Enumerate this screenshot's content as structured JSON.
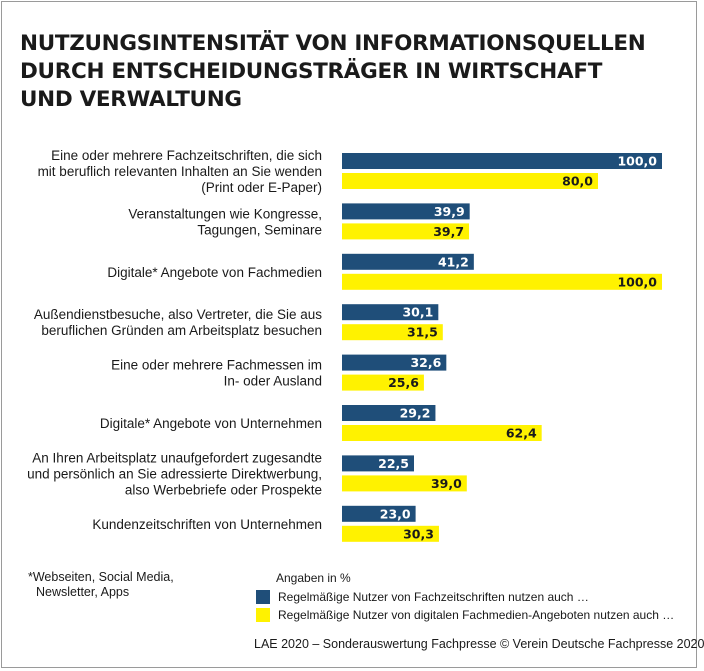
{
  "title_lines": [
    "NUTZUNGSINTENSITÄT VON INFORMATIONSQUELLEN",
    "DURCH ENTSCHEIDUNGSTRÄGER IN WIRTSCHAFT",
    "UND VERWALTUNG"
  ],
  "footnote_lines": [
    "*Webseiten, Social Media,",
    "Newsletter, Apps"
  ],
  "legend": {
    "unit": "Angaben in %",
    "items": [
      "Regelmäßige Nutzer von Fachzeitschriften nutzen auch …",
      "Regelmäßige Nutzer von digitalen Fachmedien-Angeboten nutzen auch …"
    ]
  },
  "source": "LAE 2020 – Sonderauswertung Fachpresse © Verein Deutsche Fachpresse 2020",
  "colors": {
    "series1": "#1f4e79",
    "series2": "#fff200",
    "text": "#1a1a1a",
    "frame": "#9a9a9a"
  },
  "chart_data": {
    "type": "bar",
    "orientation": "horizontal",
    "categories": [
      [
        "Eine oder mehrere Fachzeitschriften, die sich",
        "mit beruflich relevanten Inhalten an Sie wenden",
        "(Print oder E-Paper)"
      ],
      [
        "Veranstaltungen wie Kongresse,",
        "Tagungen, Seminare"
      ],
      [
        "Digitale* Angebote von Fachmedien"
      ],
      [
        "Außendienstbesuche, also Vertreter, die Sie aus",
        "beruflichen Gründen am Arbeitsplatz besuchen"
      ],
      [
        "Eine oder mehrere Fachmessen im",
        "In- oder Ausland"
      ],
      [
        "Digitale* Angebote von Unternehmen"
      ],
      [
        "An Ihren Arbeitsplatz unaufgefordert zugesandte",
        "und persönlich an Sie adressierte Direktwerbung,",
        "also Werbebriefe oder Prospekte"
      ],
      [
        "Kundenzeitschriften von Unternehmen"
      ]
    ],
    "series": [
      {
        "name": "Regelmäßige Nutzer von Fachzeitschriften nutzen auch …",
        "values": [
          100.0,
          39.9,
          41.2,
          30.1,
          32.6,
          29.2,
          22.5,
          23.0
        ],
        "labels": [
          "100,0",
          "39,9",
          "41,2",
          "30,1",
          "32,6",
          "29,2",
          "22,5",
          "23,0"
        ]
      },
      {
        "name": "Regelmäßige Nutzer von digitalen Fachmedien-Angeboten nutzen auch …",
        "values": [
          80.0,
          39.7,
          100.0,
          31.5,
          25.6,
          62.4,
          39.0,
          30.3
        ],
        "labels": [
          "80,0",
          "39,7",
          "100,0",
          "31,5",
          "25,6",
          "62,4",
          "39,0",
          "30,3"
        ]
      }
    ],
    "xlim": [
      0,
      100
    ],
    "grid": false,
    "legend_position": "bottom"
  }
}
